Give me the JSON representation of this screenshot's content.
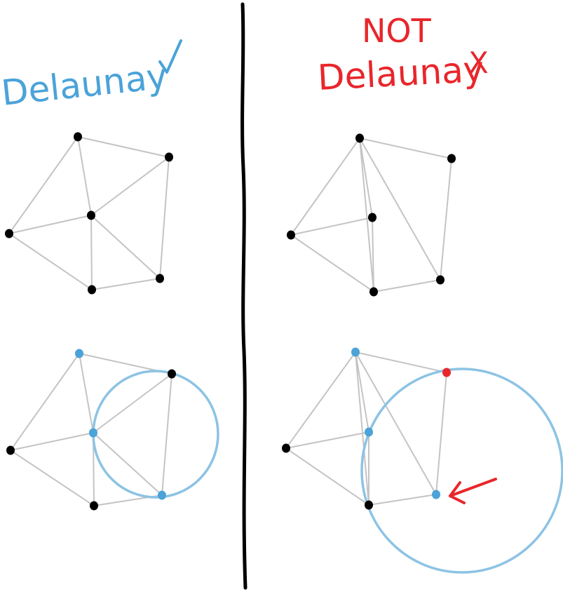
{
  "labels": {
    "left_title": "Delaunay",
    "left_mark": "✓",
    "right_title_line1": "NOT",
    "right_title_line2": "Delaunay",
    "right_mark": "X"
  },
  "colors": {
    "blue": "#4ba3d8",
    "circle_blue": "#8cc3e4",
    "red": "#e8262b",
    "black": "#000000",
    "edge_gray": "#c4c4c4"
  },
  "panels": [
    {
      "id": "left-top",
      "points": [
        {
          "id": "a",
          "c": "black"
        },
        {
          "id": "b",
          "c": "black"
        },
        {
          "id": "c",
          "c": "black"
        },
        {
          "id": "d",
          "c": "black"
        },
        {
          "id": "e",
          "c": "black"
        },
        {
          "id": "f",
          "c": "black"
        }
      ],
      "edges": [
        [
          "a",
          "b"
        ],
        [
          "a",
          "c"
        ],
        [
          "a",
          "d"
        ],
        [
          "b",
          "c"
        ],
        [
          "b",
          "f"
        ],
        [
          "c",
          "d"
        ],
        [
          "c",
          "e"
        ],
        [
          "c",
          "f"
        ],
        [
          "d",
          "e"
        ],
        [
          "e",
          "f"
        ]
      ],
      "circle": null
    },
    {
      "id": "right-top",
      "points": [
        {
          "id": "a",
          "c": "black"
        },
        {
          "id": "b",
          "c": "black"
        },
        {
          "id": "c",
          "c": "black"
        },
        {
          "id": "d",
          "c": "black"
        },
        {
          "id": "e",
          "c": "black"
        },
        {
          "id": "f",
          "c": "black"
        }
      ],
      "edges": [
        [
          "a",
          "b"
        ],
        [
          "a",
          "c"
        ],
        [
          "a",
          "d"
        ],
        [
          "b",
          "c"
        ],
        [
          "b",
          "d"
        ],
        [
          "b",
          "e"
        ],
        [
          "b",
          "f"
        ],
        [
          "c",
          "d"
        ],
        [
          "d",
          "e"
        ],
        [
          "e",
          "f"
        ]
      ],
      "circle": null
    },
    {
      "id": "left-bottom",
      "points": [
        {
          "id": "a",
          "c": "black"
        },
        {
          "id": "b",
          "c": "blue"
        },
        {
          "id": "c",
          "c": "blue"
        },
        {
          "id": "d",
          "c": "black"
        },
        {
          "id": "e",
          "c": "blue"
        },
        {
          "id": "f",
          "c": "black"
        }
      ],
      "edges": [
        [
          "a",
          "b"
        ],
        [
          "a",
          "c"
        ],
        [
          "a",
          "d"
        ],
        [
          "b",
          "c"
        ],
        [
          "b",
          "f"
        ],
        [
          "c",
          "d"
        ],
        [
          "c",
          "e"
        ],
        [
          "c",
          "f"
        ],
        [
          "d",
          "e"
        ],
        [
          "e",
          "f"
        ]
      ],
      "circle": "blue"
    },
    {
      "id": "right-bottom",
      "points": [
        {
          "id": "a",
          "c": "black"
        },
        {
          "id": "b",
          "c": "blue"
        },
        {
          "id": "c",
          "c": "blue"
        },
        {
          "id": "d",
          "c": "black"
        },
        {
          "id": "e",
          "c": "blue"
        },
        {
          "id": "f",
          "c": "red"
        }
      ],
      "edges": [
        [
          "a",
          "b"
        ],
        [
          "a",
          "c"
        ],
        [
          "a",
          "d"
        ],
        [
          "b",
          "c"
        ],
        [
          "b",
          "d"
        ],
        [
          "b",
          "e"
        ],
        [
          "b",
          "f"
        ],
        [
          "c",
          "d"
        ],
        [
          "d",
          "e"
        ],
        [
          "e",
          "f"
        ]
      ],
      "circle": "blue",
      "arrow": "red"
    }
  ]
}
